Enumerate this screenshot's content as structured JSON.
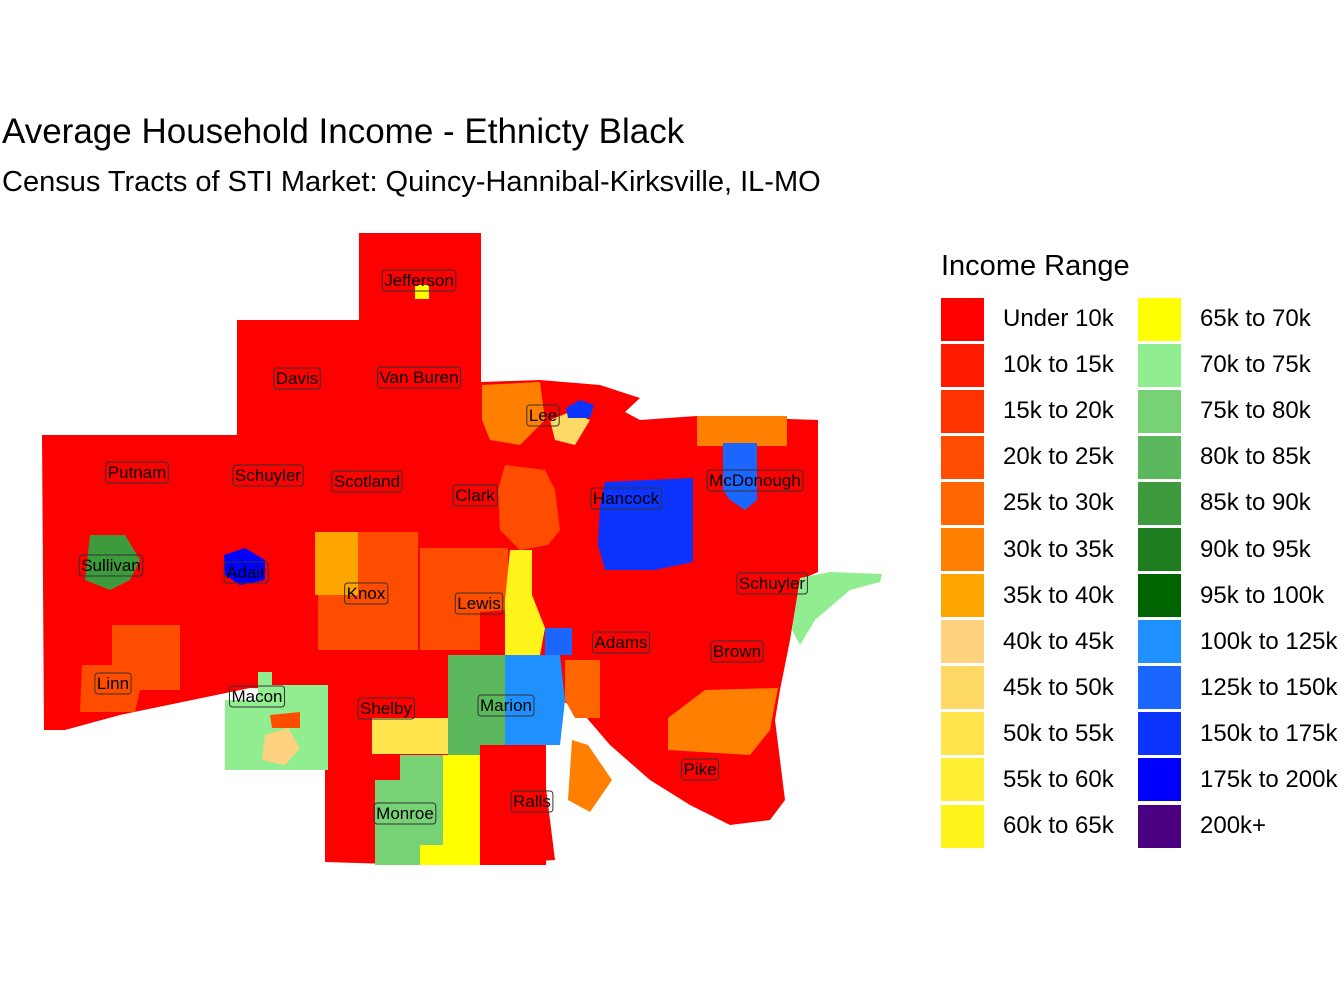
{
  "title": "Average Household Income - Ethnicty Black",
  "subtitle": "Census Tracts of STI Market: Quincy-Hannibal-Kirksville, IL-MO",
  "legend": {
    "title": "Income Range",
    "items": [
      {
        "label": "Under 10k",
        "color": "#ff0000"
      },
      {
        "label": "10k to 15k",
        "color": "#ff1a00"
      },
      {
        "label": "15k to 20k",
        "color": "#ff3300"
      },
      {
        "label": "20k to 25k",
        "color": "#ff4d00"
      },
      {
        "label": "25k to 30k",
        "color": "#ff6600"
      },
      {
        "label": "30k to 35k",
        "color": "#ff8000"
      },
      {
        "label": "35k to 40k",
        "color": "#ffa500"
      },
      {
        "label": "40k to 45k",
        "color": "#ffd27f"
      },
      {
        "label": "45k to 50k",
        "color": "#ffd966"
      },
      {
        "label": "50k to 55k",
        "color": "#ffe44d"
      },
      {
        "label": "55k to 60k",
        "color": "#ffee33"
      },
      {
        "label": "60k to 65k",
        "color": "#fff41a"
      },
      {
        "label": "65k to 70k",
        "color": "#ffff00"
      },
      {
        "label": "70k to 75k",
        "color": "#90ee90"
      },
      {
        "label": "75k to 80k",
        "color": "#76d275"
      },
      {
        "label": "80k to 85k",
        "color": "#5cb85c"
      },
      {
        "label": "85k to 90k",
        "color": "#3d9b3d"
      },
      {
        "label": "90k to 95k",
        "color": "#1e7d1e"
      },
      {
        "label": "95k to 100k",
        "color": "#006400"
      },
      {
        "label": "100k to 125k",
        "color": "#1e90ff"
      },
      {
        "label": "125k to 150k",
        "color": "#1a66ff"
      },
      {
        "label": "150k to 175k",
        "color": "#0d33ff"
      },
      {
        "label": "175k to 200k",
        "color": "#0000ff"
      },
      {
        "label": "200k+",
        "color": "#4b0082"
      }
    ]
  },
  "counties": [
    {
      "name": "Jefferson"
    },
    {
      "name": "Davis"
    },
    {
      "name": "Van Buren"
    },
    {
      "name": "Lee"
    },
    {
      "name": "Putnam"
    },
    {
      "name": "Schuyler"
    },
    {
      "name": "Scotland"
    },
    {
      "name": "Clark"
    },
    {
      "name": "Hancock"
    },
    {
      "name": "McDonough"
    },
    {
      "name": "Sullivan"
    },
    {
      "name": "Adair"
    },
    {
      "name": "Knox"
    },
    {
      "name": "Lewis"
    },
    {
      "name": "Schuyler"
    },
    {
      "name": "Adams"
    },
    {
      "name": "Brown"
    },
    {
      "name": "Linn"
    },
    {
      "name": "Macon"
    },
    {
      "name": "Shelby"
    },
    {
      "name": "Marion"
    },
    {
      "name": "Pike"
    },
    {
      "name": "Ralls"
    },
    {
      "name": "Monroe"
    }
  ]
}
